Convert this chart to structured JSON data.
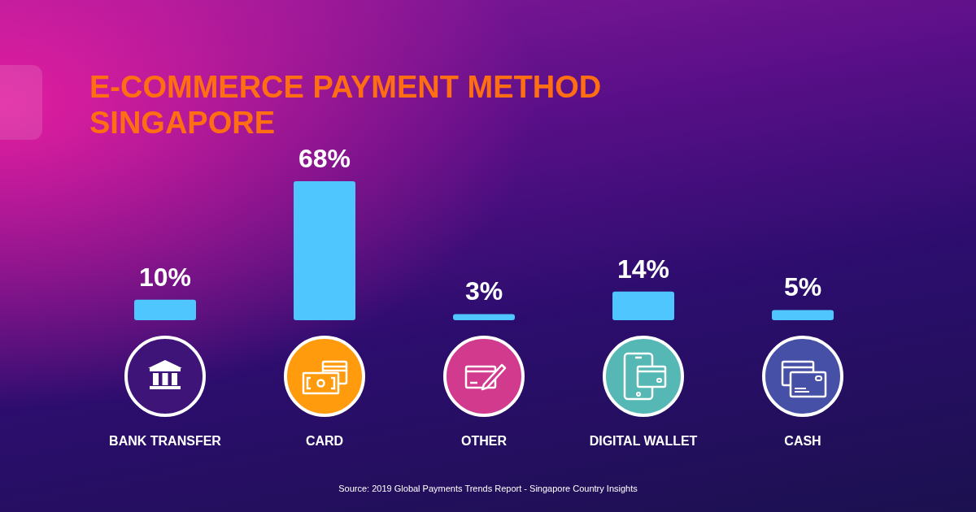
{
  "chart_data": {
    "type": "bar",
    "title": "E-COMMERCE PAYMENT METHOD SINGAPORE",
    "categories": [
      "BANK TRANSFER",
      "CARD",
      "OTHER",
      "DIGITAL WALLET",
      "CASH"
    ],
    "values": [
      10,
      68,
      3,
      14,
      5
    ],
    "value_labels": [
      "10%",
      "68%",
      "3%",
      "14%",
      "5%"
    ],
    "color": "#4fc6fd",
    "annotations": [
      "Source: 2019 Global Payments Trends Report - Singapore Country Insights"
    ]
  }
}
